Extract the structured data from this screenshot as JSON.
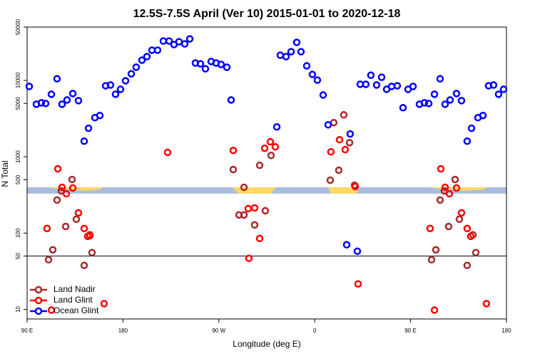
{
  "chart_data": {
    "type": "scatter",
    "title": "12.5S-7.5S April (Ver 10)   2015-01-01 to 2020-12-18",
    "x_label": "Longitude (deg E)",
    "y_label": "N Total",
    "log_y": true,
    "xlim": [
      90,
      540
    ],
    "ylim": [
      7.5,
      50000
    ],
    "xticks": [
      {
        "value": 90,
        "label": "90 E"
      },
      180,
      {
        "value": 270,
        "label": "90 W"
      },
      {
        "value": 360,
        "label": "0"
      },
      {
        "value": 450,
        "label": "90 E"
      },
      {
        "value": 540,
        "label": "180"
      }
    ],
    "yticks": [
      10,
      50,
      100,
      500,
      1000,
      5000,
      10000,
      50000
    ],
    "hline": 50,
    "legend": "lower left",
    "series": [
      {
        "name": "Land Nadir",
        "color": "#a52a2a",
        "x": [
          110.1,
          114.1,
          118.1,
          122.1,
          126.2,
          132.2,
          136.2,
          143.6,
          148.9,
          150.9,
          283.5,
          293.6,
          288.9,
          293.6,
          303.6,
          313.6,
          308.3,
          319.0,
          377.9,
          387.3,
          374.6,
          382.6,
          392.7,
          397.4,
          469.7,
          473.7,
          477.7,
          481.7,
          485.7,
          491.8,
          495.8,
          503.1,
          508.5,
          511.2
        ],
        "values": [
          44.8,
          60.4,
          271,
          357,
          122,
          504,
          152,
          37.7,
          95,
          55.5,
          680,
          398,
          173,
          173,
          128,
          196,
          773,
          1040,
          2800,
          3540,
          493,
          666,
          1530,
          424,
          44.8,
          60.4,
          271,
          357,
          122,
          504,
          152,
          37.7,
          95,
          55.5
        ]
      },
      {
        "name": "Land Glint",
        "color": "#ff0000",
        "x": [
          108.7,
          112.8,
          118.8,
          122.8,
          126.8,
          132.9,
          138.2,
          143.6,
          146.9,
          148.9,
          162.3,
          221.9,
          283.5,
          297.6,
          298.2,
          303.6,
          308.3,
          313.0,
          318.3,
          323.0,
          375.2,
          383.3,
          388.6,
          398.0,
          400.7,
          468.3,
          472.4,
          478.4,
          482.4,
          486.4,
          493.1,
          497.8,
          503.1,
          506.5,
          521.2
        ],
        "values": [
          115,
          9.8,
          695,
          398,
          328,
          390,
          184,
          115,
          90.8,
          92.8,
          11.9,
          1140,
          1210,
          209,
          46.7,
          214,
          85.2,
          1290,
          1570,
          1350,
          1160,
          1670,
          1240,
          407,
          21.6,
          115,
          9.8,
          695,
          398,
          328,
          390,
          184,
          115,
          90.8,
          11.9
        ]
      },
      {
        "name": "Ocean Glint",
        "color": "#0000ff",
        "x": [
          92.0,
          98.7,
          103.4,
          107.4,
          112.8,
          118.1,
          122.8,
          127.5,
          132.9,
          138.2,
          143.6,
          147.6,
          153.6,
          158.3,
          163.7,
          168.3,
          173.0,
          177.7,
          182.4,
          187.8,
          192.4,
          197.8,
          202.5,
          207.2,
          212.5,
          217.9,
          223.3,
          227.9,
          232.6,
          238.0,
          242.7,
          248.0,
          252.7,
          257.4,
          262.8,
          267.4,
          272.1,
          277.5,
          281.5,
          324.4,
          327.7,
          333.1,
          337.8,
          343.1,
          347.1,
          352.5,
          357.8,
          362.5,
          367.9,
          372.6,
          390.0,
          393.3,
          400.0,
          402.7,
          408.0,
          412.7,
          418.1,
          422.8,
          427.5,
          432.2,
          437.5,
          442.9,
          447.6,
          452.3,
          458.3,
          463.0,
          467.0,
          472.4,
          477.7,
          482.4,
          487.1,
          493.1,
          497.8,
          503.1,
          507.2,
          513.2,
          517.9,
          523.2,
          527.9,
          532.6,
          537.3
        ],
        "values": [
          8340,
          4880,
          5090,
          4990,
          6590,
          10500,
          4880,
          5550,
          6730,
          5430,
          1600,
          2360,
          3250,
          3470,
          8510,
          8710,
          6590,
          7650,
          9890,
          12200,
          14900,
          18400,
          20500,
          24900,
          24900,
          32800,
          32800,
          29500,
          32100,
          30100,
          35000,
          16900,
          16500,
          14200,
          17700,
          16900,
          16200,
          14900,
          5550,
          2460,
          21400,
          20500,
          23800,
          31500,
          23800,
          15500,
          12000,
          10100,
          6440,
          2620,
          70.3,
          1990,
          57.9,
          8890,
          8890,
          11700,
          8710,
          11000,
          7650,
          8340,
          8510,
          4390,
          7650,
          8340,
          4880,
          5090,
          4990,
          6590,
          10500,
          4880,
          5550,
          6730,
          5430,
          1600,
          2360,
          3250,
          3470,
          8510,
          8710,
          6590,
          7650
        ]
      }
    ]
  }
}
